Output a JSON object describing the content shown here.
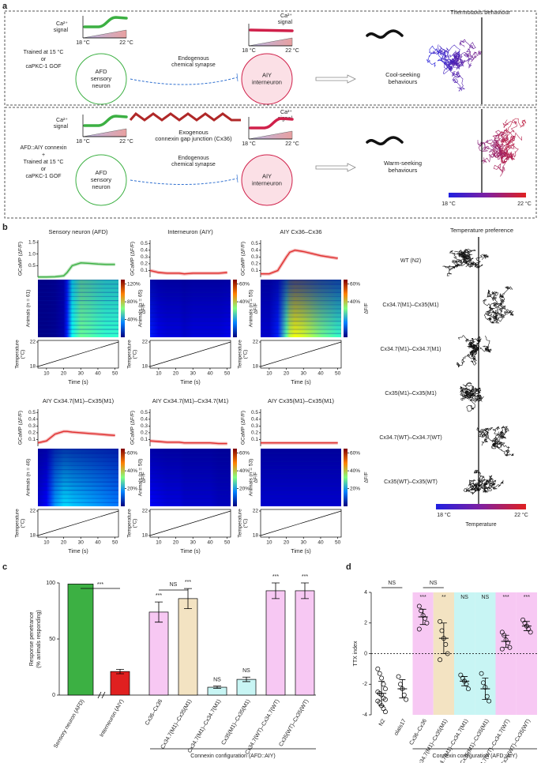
{
  "figure": {
    "panel_labels": [
      "a",
      "b",
      "c",
      "d"
    ],
    "a": {
      "title": "Thermotaxis behaviour",
      "ca_signal": [
        "Ca²⁺",
        "signal"
      ],
      "temp_low": "18 °C",
      "temp_high": "22 °C",
      "row1_condition": [
        "Trained at 15 °C",
        "or",
        "caPKC-1 GOF"
      ],
      "row2_condition": [
        "AFD::AIY connexin",
        "+",
        "Trained at 15 °C",
        "or",
        "caPKC-1 GOF"
      ],
      "afd": [
        "AFD",
        "sensory",
        "neuron"
      ],
      "aiy": [
        "AIY",
        "interneuron"
      ],
      "synapse": [
        "Endogenous",
        "chemical synapse"
      ],
      "gap": [
        "Exogenous",
        "connexin gap junction (Cx36)"
      ],
      "cool": [
        "Cool-seeking",
        "behaviours"
      ],
      "warm": [
        "Warm-seeking",
        "behaviours"
      ]
    },
    "b_preference": {
      "title": "Temperature preference",
      "strains": [
        "WT (N2)",
        "Cx34.7(M1)–Cx35(M1)",
        "Cx34.7(M1)–Cx34.7(M1)",
        "Cx35(M1)–Cx35(M1)",
        "Cx34.7(WT)–Cx34.7(WT)",
        "Cx35(WT)–Cx35(WT)"
      ],
      "low": "18 °C",
      "high": "22 °C",
      "label": "Temperature"
    }
  },
  "chart_data": [
    {
      "type": "trace",
      "title": "Sensory neuron (AFD)",
      "y_label": "GCaMP (ΔF/F)",
      "n_label": "Animals (n = 61)",
      "color_label": "ΔF/F",
      "temp_label": [
        "Temperature",
        "(°C)"
      ],
      "temp_ticks": [
        18,
        22
      ],
      "x_label": "Time (s)",
      "color": "#3cb043",
      "x": [
        5,
        10,
        15,
        20,
        22,
        25,
        30,
        35,
        40,
        45,
        50
      ],
      "values": [
        0.01,
        0.01,
        0.02,
        0.06,
        0.2,
        0.5,
        0.62,
        0.6,
        0.57,
        0.55,
        0.55
      ],
      "xlim": [
        5,
        52
      ],
      "xticks": [
        10,
        20,
        30,
        40,
        50
      ],
      "ylim": [
        0,
        1.6
      ],
      "yticks": [
        {
          "value": 0.5,
          "label": "0.5"
        },
        {
          "value": 1,
          "label": "1.0"
        },
        {
          "value": 1.5,
          "label": "1.5"
        }
      ],
      "clim": [
        0,
        130
      ],
      "cticks": [
        {
          "value": 40,
          "label": "40%"
        },
        {
          "value": 80,
          "label": "80%"
        },
        {
          "value": 120,
          "label": "120%"
        }
      ]
    },
    {
      "type": "trace",
      "title": "Interneuron (AIY)",
      "y_label": "GCaMP (ΔF/F)",
      "n_label": "Animals (n = 65)",
      "color_label": "ΔF/F",
      "temp_label": [
        "Temperature",
        "(°C)"
      ],
      "temp_ticks": [
        18,
        22
      ],
      "x_label": "Time (s)",
      "color": "#e03030",
      "x": [
        5,
        10,
        15,
        20,
        22,
        25,
        30,
        35,
        40,
        45,
        50
      ],
      "values": [
        0.1,
        0.07,
        0.06,
        0.06,
        0.06,
        0.05,
        0.06,
        0.06,
        0.06,
        0.06,
        0.07
      ],
      "xlim": [
        5,
        52
      ],
      "xticks": [
        10,
        20,
        30,
        40,
        50
      ],
      "ylim": [
        0,
        0.55
      ],
      "yticks": [
        0.1,
        0.2,
        0.3,
        0.4,
        0.5
      ],
      "clim": [
        0,
        65
      ],
      "cticks": [
        {
          "value": 40,
          "label": "40%"
        },
        {
          "value": 60,
          "label": "60%"
        }
      ]
    },
    {
      "type": "trace",
      "title": "AIY Cx36–Cx36",
      "y_label": "GCaMP (ΔF/F)",
      "n_label": "Animals (n = 55)",
      "color_label": "ΔF/F",
      "temp_label": [
        "Temperature",
        "(°C)"
      ],
      "temp_ticks": [
        18,
        22
      ],
      "x_label": "Time (s)",
      "color": "#e03030",
      "x": [
        5,
        10,
        15,
        20,
        22,
        25,
        30,
        35,
        40,
        45,
        50
      ],
      "values": [
        0.05,
        0.05,
        0.1,
        0.3,
        0.37,
        0.4,
        0.38,
        0.35,
        0.32,
        0.3,
        0.28
      ],
      "xlim": [
        5,
        52
      ],
      "xticks": [
        10,
        20,
        30,
        40,
        50
      ],
      "ylim": [
        0,
        0.55
      ],
      "yticks": [
        0.1,
        0.2,
        0.3,
        0.4,
        0.5
      ],
      "clim": [
        0,
        65
      ],
      "cticks": [
        {
          "value": 40,
          "label": "40%"
        },
        {
          "value": 60,
          "label": "60%"
        }
      ]
    },
    {
      "type": "trace",
      "title": "AIY Cx34.7(M1)–Cx35(M1)",
      "y_label": "GCaMP (ΔF/F)",
      "n_label": "Animals (n = 46)",
      "color_label": "ΔF/F",
      "temp_label": [
        "Temperature",
        "(°C)"
      ],
      "temp_ticks": [
        18,
        22
      ],
      "x_label": "Time (s)",
      "color": "#e03030",
      "x": [
        5,
        10,
        15,
        20,
        22,
        25,
        30,
        35,
        40,
        45,
        50
      ],
      "values": [
        0.05,
        0.08,
        0.18,
        0.22,
        0.22,
        0.21,
        0.2,
        0.19,
        0.18,
        0.17,
        0.16
      ],
      "xlim": [
        5,
        52
      ],
      "xticks": [
        10,
        20,
        30,
        40,
        50
      ],
      "ylim": [
        0,
        0.55
      ],
      "yticks": [
        0.1,
        0.2,
        0.3,
        0.4,
        0.5
      ],
      "clim": [
        0,
        65
      ],
      "cticks": [
        {
          "value": 20,
          "label": "20%"
        },
        {
          "value": 40,
          "label": "40%"
        },
        {
          "value": 60,
          "label": "60%"
        }
      ]
    },
    {
      "type": "trace",
      "title": "AIY Cx34.7(M1)–Cx34.7(M1)",
      "y_label": "GCaMP (ΔF/F)",
      "n_label": "Animals (n = 50)",
      "color_label": "ΔF/F",
      "temp_label": [
        "Temperature",
        "(°C)"
      ],
      "temp_ticks": [
        18,
        22
      ],
      "x_label": "Time (s)",
      "color": "#e03030",
      "x": [
        5,
        10,
        15,
        20,
        22,
        25,
        30,
        35,
        40,
        45,
        50
      ],
      "values": [
        0.08,
        0.07,
        0.06,
        0.06,
        0.06,
        0.05,
        0.05,
        0.05,
        0.05,
        0.04,
        0.04
      ],
      "xlim": [
        5,
        52
      ],
      "xticks": [
        10,
        20,
        30,
        40,
        50
      ],
      "ylim": [
        0,
        0.55
      ],
      "yticks": [
        0.1,
        0.2,
        0.3,
        0.4,
        0.5
      ],
      "clim": [
        0,
        65
      ],
      "cticks": [
        {
          "value": 20,
          "label": "20%"
        },
        {
          "value": 40,
          "label": "40%"
        },
        {
          "value": 60,
          "label": "60%"
        }
      ]
    },
    {
      "type": "trace",
      "title": "AIY Cx35(M1)–Cx35(M1)",
      "y_label": "GCaMP (ΔF/F)",
      "n_label": "Animals (n = 53)",
      "color_label": "ΔF/F",
      "temp_label": [
        "Temperature",
        "(°C)"
      ],
      "temp_ticks": [
        18,
        22
      ],
      "x_label": "Time (s)",
      "color": "#e03030",
      "x": [
        5,
        10,
        15,
        20,
        22,
        25,
        30,
        35,
        40,
        45,
        50
      ],
      "values": [
        0.05,
        0.05,
        0.05,
        0.05,
        0.05,
        0.05,
        0.05,
        0.05,
        0.05,
        0.05,
        0.05
      ],
      "xlim": [
        5,
        52
      ],
      "xticks": [
        10,
        20,
        30,
        40,
        50
      ],
      "ylim": [
        0,
        0.55
      ],
      "yticks": [
        0.1,
        0.2,
        0.3,
        0.4,
        0.5
      ],
      "clim": [
        0,
        65
      ],
      "cticks": [
        {
          "value": 20,
          "label": "20%"
        },
        {
          "value": 40,
          "label": "40%"
        },
        {
          "value": 60,
          "label": "60%"
        }
      ]
    },
    {
      "type": "bar",
      "y_label": [
        "Response penetrance",
        "(% animals responding)"
      ],
      "x_label": "Connexin configuration (AFD::AIY)",
      "categories": [
        "Sensory neuron (AFD)",
        "Interneuron (AIY)",
        "Cx36–Cx36",
        "Cx34.7(M1)–Cx35(M1)",
        "Cx34.7(M1)–Cx34.7(M1)",
        "Cx35(M1)–Cx35(M1)",
        "Cx34.7(WT)–Cx34.7(WT)",
        "Cx35(WT)–Cx35(WT)"
      ],
      "values": [
        99,
        21,
        74,
        86,
        7,
        14,
        93,
        93
      ],
      "errors": [
        0,
        2,
        9,
        9,
        1,
        2,
        7,
        7
      ],
      "colors": [
        "#3cb043",
        "#e02020",
        "#f7c8f3",
        "#f3e3c2",
        "#c8f5f4",
        "#c8f5f4",
        "#f7c8f3",
        "#f7c8f3"
      ],
      "significance": [
        null,
        null,
        "***",
        "***",
        "NS",
        "NS",
        "***",
        "***"
      ],
      "bracket_labels": [
        "***",
        "NS"
      ],
      "ylim": [
        0,
        100
      ],
      "yticks": [
        0,
        50,
        100
      ]
    },
    {
      "type": "dot",
      "y_label": "TTX index",
      "x_label": "Connexin configuration (AFD::AIY)",
      "categories": [
        "N2",
        "olaIs17",
        "Cx36–Cx36",
        "Cx34.7(M1)–Cx35(M1)",
        "Cx34.7(M1)–Cx34.7(M1)",
        "Cx35(M1)–Cx35(M1)",
        "Cx34.7(WT)–Cx34.7(WT)",
        "Cx35(WT)–Cx35(WT)"
      ],
      "points": [
        [
          -1,
          -1.3,
          -1.6,
          -2,
          -2.3,
          -2.5,
          -2.6,
          -2.7,
          -2.9,
          -3,
          -3.1,
          -3.2,
          -3.4,
          -3.6,
          -3.8
        ],
        [
          -1.5,
          -2,
          -2.3,
          -2.7,
          -3
        ],
        [
          3.1,
          2.8,
          2.5,
          2.3,
          2,
          1.6
        ],
        [
          2.1,
          1.5,
          1,
          0.6,
          0,
          -0.4
        ],
        [
          -1.4,
          -1.6,
          -1.8,
          -2,
          -2.3
        ],
        [
          -1.3,
          -1.9,
          -2.2,
          -2.8,
          -3.1
        ],
        [
          1.4,
          1.2,
          0.9,
          0.7,
          0.4,
          0.3
        ],
        [
          2.2,
          2,
          1.8,
          1.6,
          1.4
        ]
      ],
      "means": [
        -2.6,
        -2.3,
        2.4,
        1,
        -1.8,
        -2.3,
        0.8,
        1.8
      ],
      "sds": [
        0.8,
        0.6,
        0.5,
        1,
        0.3,
        0.7,
        0.4,
        0.3
      ],
      "band_colors": [
        null,
        null,
        "#f7c8f3",
        "#f3e3c2",
        "#c8f5f4",
        "#c8f5f4",
        "#f7c8f3",
        "#f7c8f3"
      ],
      "significance": [
        null,
        null,
        "***",
        "**",
        "NS",
        "NS",
        "***",
        "***"
      ],
      "bracket_labels": [
        "NS",
        "NS"
      ],
      "ylim": [
        -4,
        4
      ],
      "yticks": [
        -4,
        -2,
        0,
        2,
        4
      ]
    }
  ]
}
